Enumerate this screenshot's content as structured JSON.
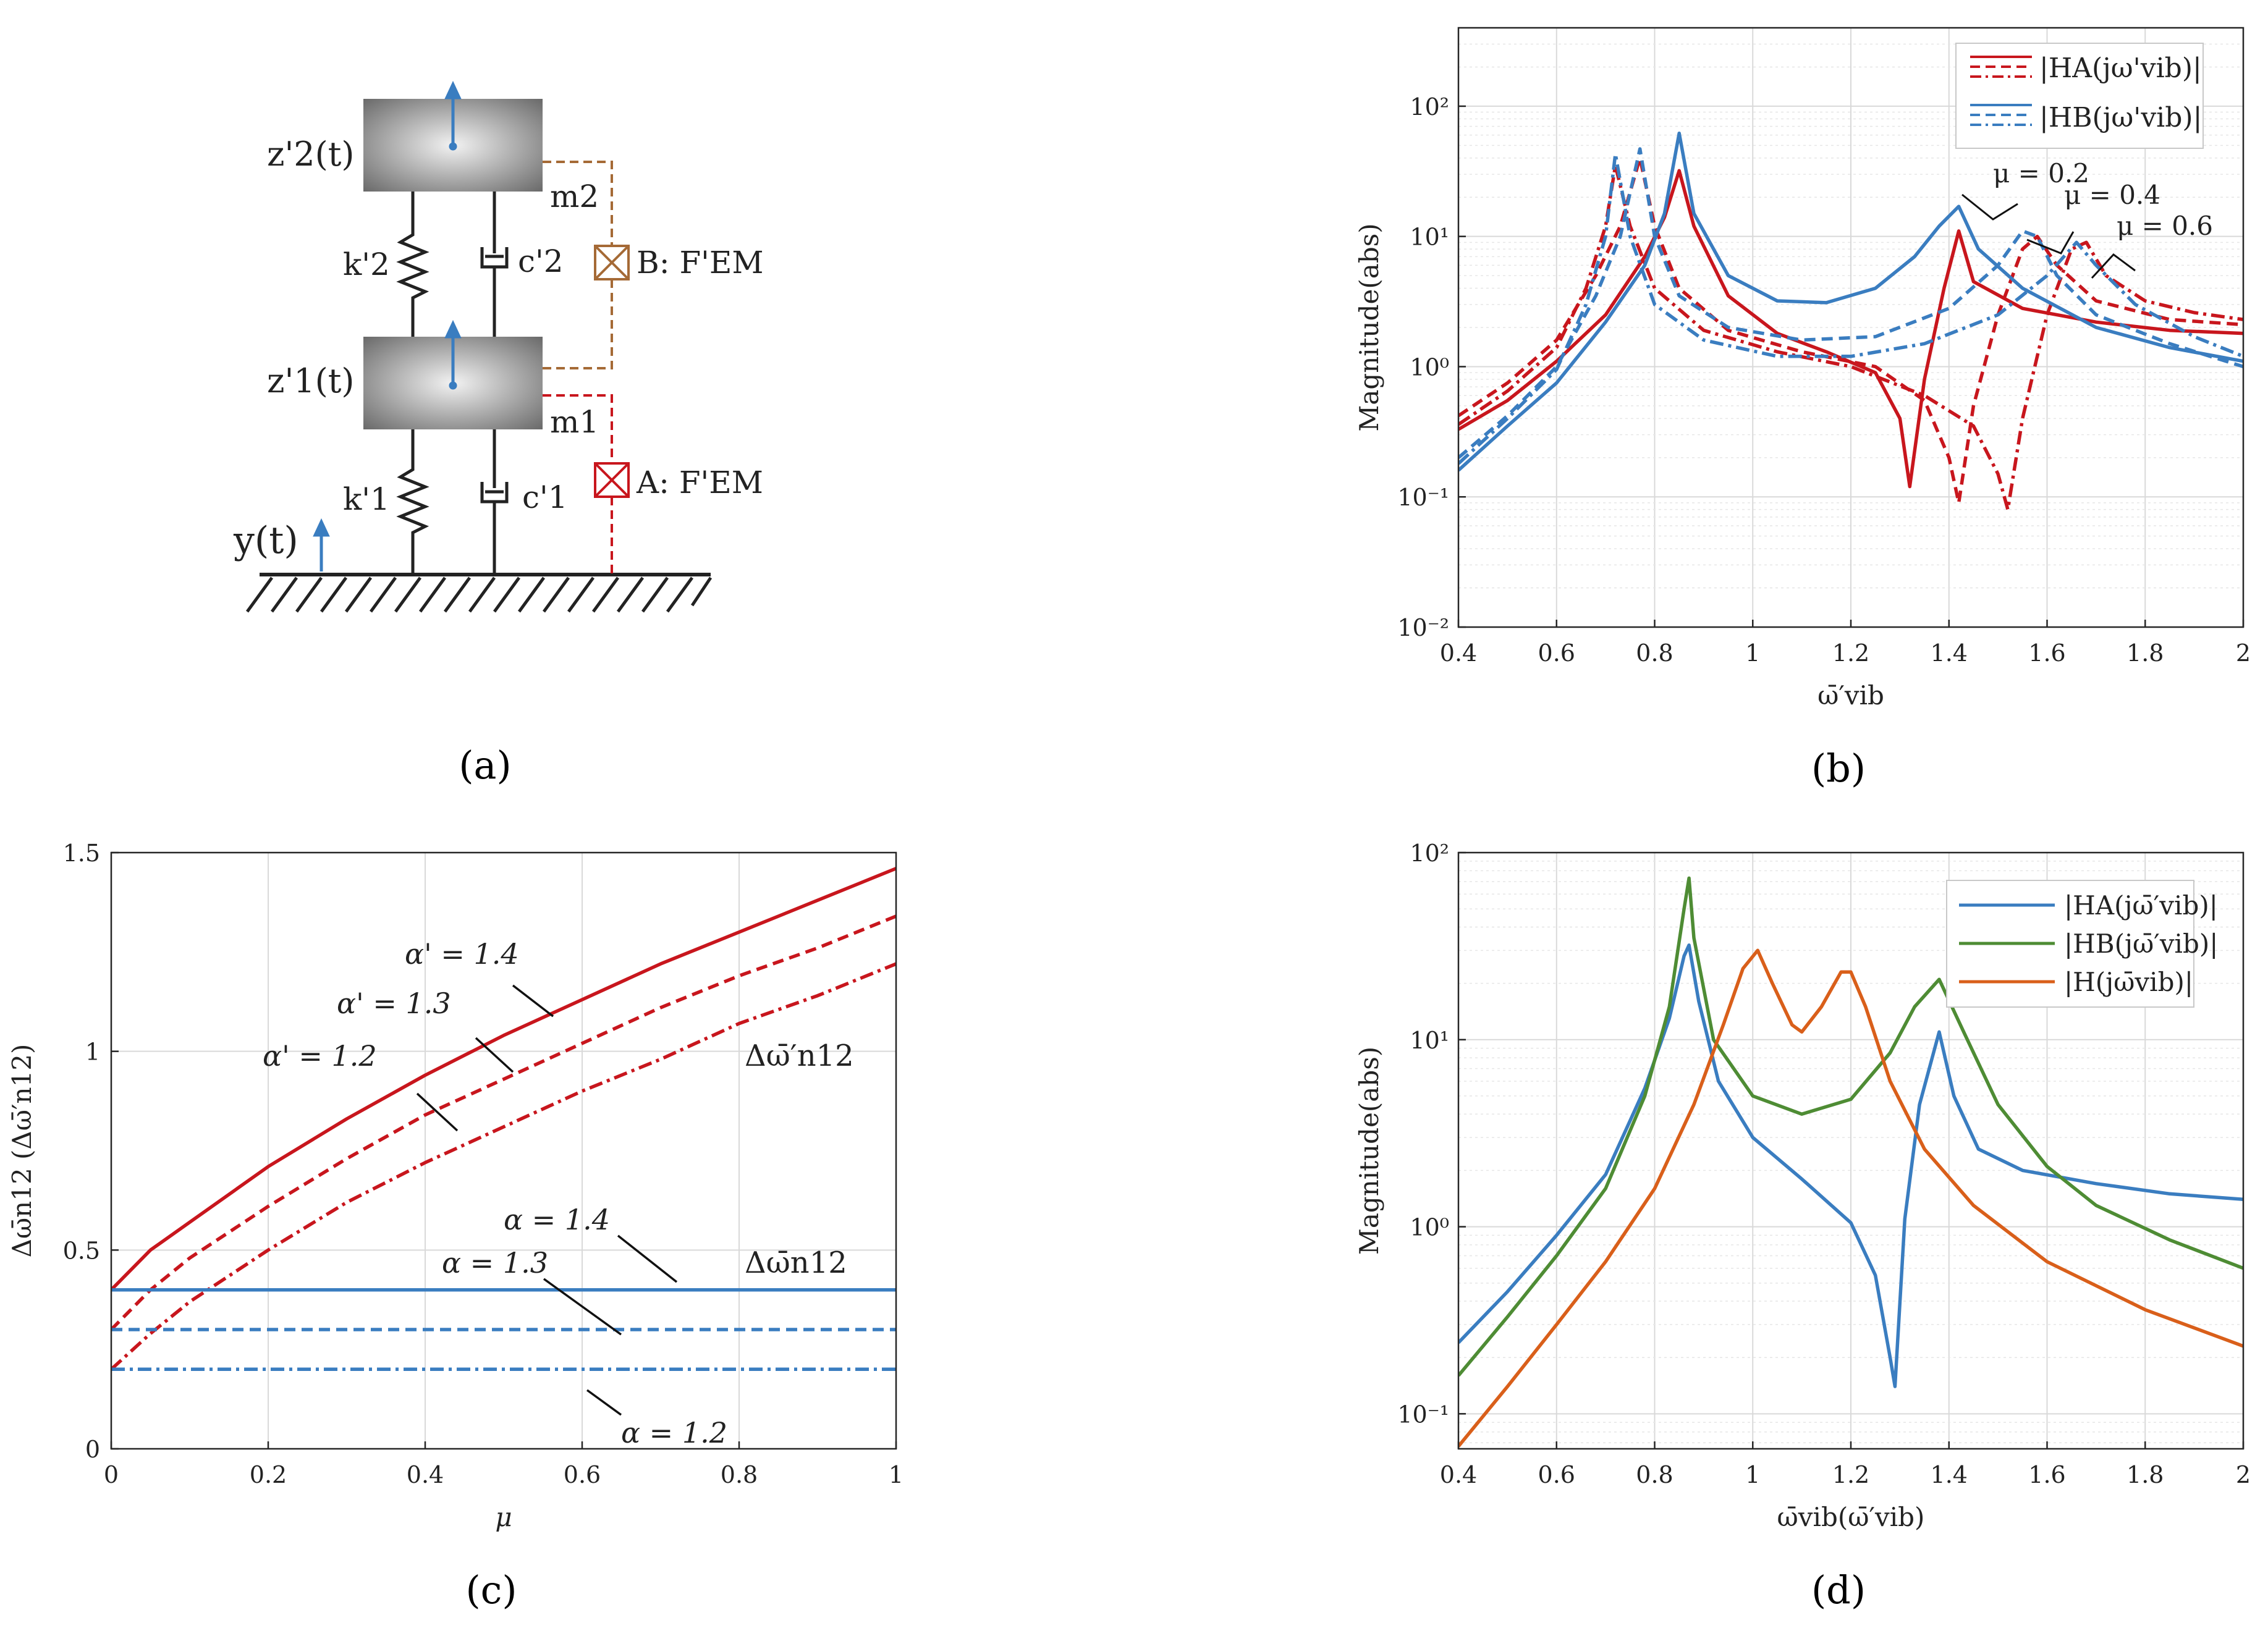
{
  "colors": {
    "red": "#c8161d",
    "blue": "#3a7dc0",
    "green": "#4e8c34",
    "orange": "#d95f1a",
    "brown": "#a56a36",
    "gray": "#808080"
  },
  "panel_a": {
    "label": "(a)",
    "z2": "z'2(t)",
    "z1": "z'1(t)",
    "y": "y(t)",
    "m2": "m2",
    "m1": "m1",
    "k2": "k'2",
    "c2": "c'2",
    "k1": "k'1",
    "c1": "c'1",
    "B": "B: F'EM",
    "A": "A: F'EM"
  },
  "chart_data": [
    {
      "id": "b",
      "panel_label": "(b)",
      "type": "line",
      "xlabel": "ω̄′vib",
      "ylabel": "Magnitude(abs)",
      "xlim": [
        0.4,
        2.0
      ],
      "ylim": [
        0.01,
        400
      ],
      "yscale": "log",
      "grid": true,
      "xticks": [
        "0.4",
        "0.6",
        "0.8",
        "1",
        "1.2",
        "1.4",
        "1.6",
        "1.8",
        "2"
      ],
      "yticks": [
        "10⁻²",
        "10⁻¹",
        "10⁰",
        "10¹",
        "10²"
      ],
      "legend": {
        "position": "top-right",
        "entries": [
          "|HA(jω'vib)|",
          "|HB(jω'vib)|"
        ]
      },
      "annotations": [
        "μ = 0.2",
        "μ = 0.4",
        "μ = 0.6"
      ],
      "series": [
        {
          "name": "|HA| μ=0.2",
          "style": "solid",
          "color": "red",
          "x": [
            0.4,
            0.5,
            0.6,
            0.7,
            0.78,
            0.82,
            0.85,
            0.88,
            0.95,
            1.05,
            1.15,
            1.25,
            1.3,
            1.32,
            1.35,
            1.39,
            1.42,
            1.45,
            1.55,
            1.7,
            1.85,
            2.0
          ],
          "y": [
            0.33,
            0.55,
            1.1,
            2.5,
            7,
            14,
            32,
            12,
            3.5,
            1.8,
            1.3,
            0.9,
            0.4,
            0.12,
            0.8,
            4,
            11,
            4.5,
            2.8,
            2.2,
            1.9,
            1.8
          ]
        },
        {
          "name": "|HA| μ=0.4",
          "style": "dash",
          "color": "red",
          "x": [
            0.4,
            0.5,
            0.6,
            0.68,
            0.73,
            0.77,
            0.8,
            0.85,
            0.95,
            1.1,
            1.25,
            1.35,
            1.4,
            1.42,
            1.45,
            1.5,
            1.55,
            1.58,
            1.62,
            1.7,
            1.85,
            2.0
          ],
          "y": [
            0.42,
            0.75,
            1.6,
            5,
            12,
            40,
            12,
            4,
            1.9,
            1.3,
            1.0,
            0.55,
            0.2,
            0.09,
            0.5,
            2.5,
            8,
            10,
            6,
            3.2,
            2.3,
            2.1
          ]
        },
        {
          "name": "|HA| μ=0.6",
          "style": "dashdot",
          "color": "red",
          "x": [
            0.4,
            0.5,
            0.6,
            0.66,
            0.7,
            0.72,
            0.75,
            0.8,
            0.9,
            1.05,
            1.2,
            1.35,
            1.45,
            1.5,
            1.52,
            1.55,
            1.6,
            1.65,
            1.68,
            1.72,
            1.8,
            1.9,
            2.0
          ],
          "y": [
            0.36,
            0.65,
            1.4,
            4,
            12,
            35,
            12,
            4,
            1.9,
            1.3,
            1.0,
            0.6,
            0.35,
            0.15,
            0.08,
            0.4,
            2.5,
            8,
            9,
            5,
            3.2,
            2.6,
            2.3
          ]
        },
        {
          "name": "|HB| μ=0.2",
          "style": "solid",
          "color": "blue",
          "x": [
            0.4,
            0.5,
            0.6,
            0.7,
            0.78,
            0.82,
            0.85,
            0.88,
            0.95,
            1.05,
            1.15,
            1.25,
            1.33,
            1.38,
            1.42,
            1.46,
            1.55,
            1.7,
            1.85,
            2.0
          ],
          "y": [
            0.16,
            0.35,
            0.75,
            2.2,
            6,
            15,
            62,
            15,
            5,
            3.2,
            3.1,
            4,
            7,
            12,
            17,
            8,
            4,
            2,
            1.4,
            1.1
          ]
        },
        {
          "name": "|HB| μ=0.4",
          "style": "dash",
          "color": "blue",
          "x": [
            0.4,
            0.5,
            0.6,
            0.68,
            0.73,
            0.77,
            0.8,
            0.85,
            0.95,
            1.1,
            1.25,
            1.4,
            1.5,
            1.55,
            1.58,
            1.62,
            1.7,
            1.85,
            2.0
          ],
          "y": [
            0.2,
            0.42,
            1.0,
            3.5,
            10,
            47,
            10,
            3.5,
            2,
            1.6,
            1.7,
            2.8,
            6,
            11,
            10,
            5,
            2.5,
            1.5,
            1.0
          ]
        },
        {
          "name": "|HB| μ=0.6",
          "style": "dashdot",
          "color": "blue",
          "x": [
            0.4,
            0.5,
            0.6,
            0.66,
            0.7,
            0.72,
            0.75,
            0.8,
            0.9,
            1.05,
            1.2,
            1.35,
            1.5,
            1.6,
            1.66,
            1.7,
            1.78,
            1.9,
            2.0
          ],
          "y": [
            0.18,
            0.4,
            0.95,
            3,
            10,
            43,
            10,
            3,
            1.6,
            1.2,
            1.2,
            1.5,
            2.5,
            5,
            9,
            6,
            3,
            1.7,
            1.2
          ]
        }
      ]
    },
    {
      "id": "c",
      "panel_label": "(c)",
      "type": "line",
      "xlabel": "μ",
      "ylabel": "Δω̄n12 (Δω̄′n12)",
      "xlim": [
        0,
        1
      ],
      "ylim": [
        0,
        1.5
      ],
      "grid": true,
      "xticks": [
        "0",
        "0.2",
        "0.4",
        "0.6",
        "0.8",
        "1"
      ],
      "yticks": [
        "0",
        "0.5",
        "1",
        "1.5"
      ],
      "annotations": [
        "α' = 1.4",
        "α' = 1.3",
        "α' = 1.2",
        "α = 1.4",
        "α = 1.3",
        "α = 1.2",
        "Δω̄′n12",
        "Δω̄n12"
      ],
      "series": [
        {
          "name": "α' = 1.4",
          "style": "solid",
          "color": "red",
          "x": [
            0,
            0.05,
            0.1,
            0.2,
            0.3,
            0.4,
            0.5,
            0.6,
            0.7,
            0.8,
            0.9,
            1.0
          ],
          "y": [
            0.4,
            0.5,
            0.57,
            0.71,
            0.83,
            0.94,
            1.04,
            1.13,
            1.22,
            1.3,
            1.38,
            1.46
          ]
        },
        {
          "name": "α' = 1.3",
          "style": "dash",
          "color": "red",
          "x": [
            0,
            0.05,
            0.1,
            0.2,
            0.3,
            0.4,
            0.5,
            0.6,
            0.7,
            0.8,
            0.9,
            1.0
          ],
          "y": [
            0.3,
            0.4,
            0.48,
            0.61,
            0.73,
            0.84,
            0.93,
            1.02,
            1.11,
            1.19,
            1.26,
            1.34
          ]
        },
        {
          "name": "α' = 1.2",
          "style": "dashdot",
          "color": "red",
          "x": [
            0,
            0.05,
            0.1,
            0.2,
            0.3,
            0.4,
            0.5,
            0.6,
            0.7,
            0.8,
            0.9,
            1.0
          ],
          "y": [
            0.2,
            0.29,
            0.37,
            0.5,
            0.62,
            0.72,
            0.81,
            0.9,
            0.98,
            1.07,
            1.14,
            1.22
          ]
        },
        {
          "name": "α = 1.4",
          "style": "solid",
          "color": "blue",
          "x": [
            0,
            1
          ],
          "y": [
            0.4,
            0.4
          ]
        },
        {
          "name": "α = 1.3",
          "style": "dash",
          "color": "blue",
          "x": [
            0,
            1
          ],
          "y": [
            0.3,
            0.3
          ]
        },
        {
          "name": "α = 1.2",
          "style": "dashdot",
          "color": "blue",
          "x": [
            0,
            1
          ],
          "y": [
            0.2,
            0.2
          ]
        }
      ]
    },
    {
      "id": "d",
      "panel_label": "(d)",
      "type": "line",
      "xlabel": "ω̄vib(ω̄′vib)",
      "ylabel": "Magnitude(abs)",
      "xlim": [
        0.4,
        2.0
      ],
      "ylim": [
        0.065,
        100
      ],
      "yscale": "log",
      "grid": true,
      "xticks": [
        "0.4",
        "0.6",
        "0.8",
        "1",
        "1.2",
        "1.4",
        "1.6",
        "1.8",
        "2"
      ],
      "yticks": [
        "10⁻¹",
        "10⁰",
        "10¹",
        "10²"
      ],
      "legend": {
        "position": "top-right",
        "entries": [
          "|HA(jω̄′vib)|",
          "|HB(jω̄′vib)|",
          "|H(jω̄vib)|"
        ]
      },
      "series": [
        {
          "name": "|HA(jω̄′vib)|",
          "style": "solid",
          "color": "blue",
          "x": [
            0.4,
            0.5,
            0.6,
            0.7,
            0.78,
            0.83,
            0.86,
            0.87,
            0.89,
            0.93,
            1.0,
            1.1,
            1.2,
            1.25,
            1.28,
            1.29,
            1.31,
            1.34,
            1.38,
            1.41,
            1.46,
            1.55,
            1.7,
            1.85,
            2.0
          ],
          "y": [
            0.24,
            0.45,
            0.9,
            1.9,
            5.5,
            13,
            28,
            32,
            16,
            6,
            3,
            1.8,
            1.05,
            0.55,
            0.2,
            0.14,
            1.1,
            4.5,
            11,
            5,
            2.6,
            2.0,
            1.7,
            1.5,
            1.4
          ]
        },
        {
          "name": "|HB(jω̄′vib)|",
          "style": "solid",
          "color": "green",
          "x": [
            0.4,
            0.5,
            0.6,
            0.7,
            0.78,
            0.83,
            0.86,
            0.87,
            0.88,
            0.92,
            1.0,
            1.1,
            1.2,
            1.28,
            1.33,
            1.38,
            1.43,
            1.5,
            1.6,
            1.7,
            1.85,
            2.0
          ],
          "y": [
            0.16,
            0.33,
            0.7,
            1.6,
            5,
            15,
            50,
            73,
            35,
            10,
            5,
            4,
            4.8,
            8.5,
            15,
            21,
            11,
            4.5,
            2.1,
            1.3,
            0.85,
            0.6
          ]
        },
        {
          "name": "|H(jω̄vib)|",
          "style": "solid",
          "color": "orange",
          "x": [
            0.4,
            0.5,
            0.6,
            0.7,
            0.8,
            0.88,
            0.94,
            0.98,
            1.01,
            1.04,
            1.08,
            1.1,
            1.14,
            1.18,
            1.2,
            1.23,
            1.28,
            1.35,
            1.45,
            1.6,
            1.8,
            2.0
          ],
          "y": [
            0.067,
            0.14,
            0.3,
            0.65,
            1.6,
            4.5,
            12,
            24,
            30,
            20,
            12,
            11,
            15,
            23,
            23,
            15,
            6,
            2.6,
            1.3,
            0.65,
            0.36,
            0.23
          ]
        }
      ]
    }
  ]
}
